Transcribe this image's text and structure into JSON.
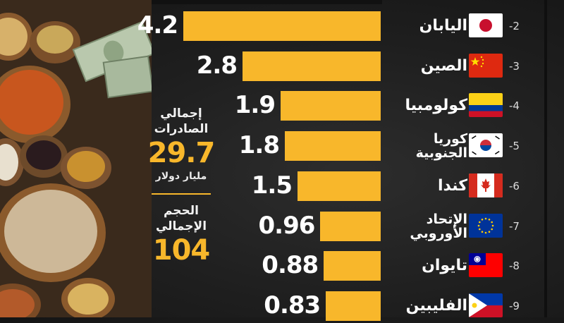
{
  "summary": {
    "exports_label": "إجمالي الصادرات",
    "exports_value": "29.7",
    "exports_unit": "مليار دولار",
    "volume_label": "الحجم الإجمالي",
    "volume_value": "104"
  },
  "chart_data": {
    "type": "bar",
    "orientation": "horizontal",
    "categories": [
      "اليابان",
      "الصين",
      "كولومبيا",
      "كوريا الجنوبية",
      "كندا",
      "الإتحاد الأوروبي",
      "تايوان",
      "الفليبين"
    ],
    "ranks": [
      "-2",
      "-3",
      "-4",
      "-5",
      "-6",
      "-7",
      "-8",
      "-9"
    ],
    "values": [
      4.2,
      2.8,
      1.9,
      1.8,
      1.5,
      0.96,
      0.88,
      0.83
    ],
    "value_labels": [
      "4.2",
      "2.8",
      "1.9",
      "1.8",
      "1.5",
      "0.96",
      "0.88",
      "0.83"
    ],
    "flag_icons": [
      "japan-flag-icon",
      "china-flag-icon",
      "colombia-flag-icon",
      "south-korea-flag-icon",
      "canada-flag-icon",
      "eu-flag-icon",
      "taiwan-flag-icon",
      "philippines-flag-icon"
    ],
    "bar_color": "#f8b72b",
    "xlim": [
      0,
      4.2
    ],
    "grid": false,
    "legend": "none"
  }
}
